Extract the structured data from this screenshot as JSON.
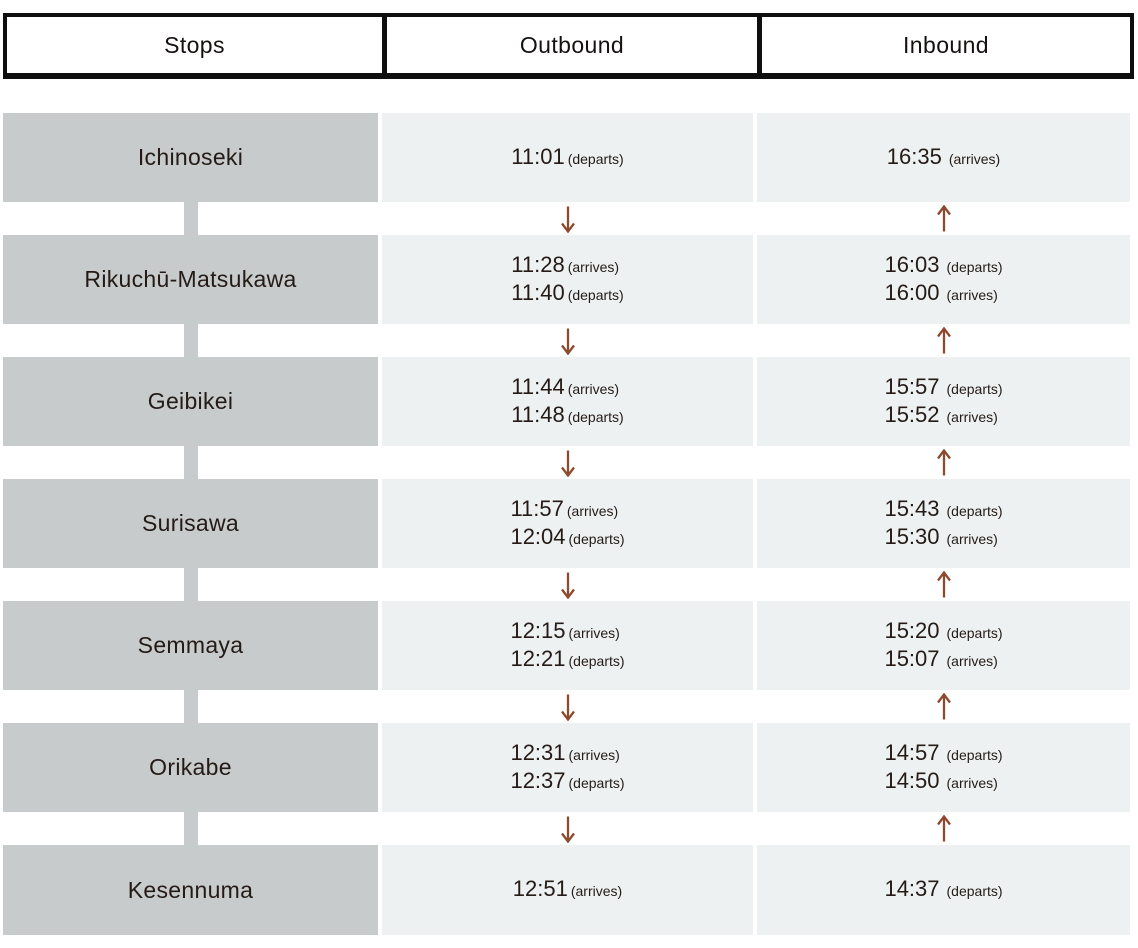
{
  "header": {
    "stops": "Stops",
    "outbound": "Outbound",
    "inbound": "Inbound"
  },
  "icons": {
    "down_arrow": "↓",
    "up_arrow": "↑"
  },
  "colors": {
    "station_cell": "#c7cbcc",
    "time_cell": "#eef1f2",
    "route_connector": "#c7cbcc",
    "arrow": "#8e4a2e",
    "header_border": "#0e0e0e",
    "text": "#241a16"
  },
  "rows": [
    {
      "station": "Ichinoseki",
      "outbound": [
        {
          "time": "11:01",
          "label": "(departs)"
        }
      ],
      "inbound": [
        {
          "time": "16:35",
          "label": "(arrives)"
        }
      ]
    },
    {
      "station": "Rikuchū-Matsukawa",
      "outbound": [
        {
          "time": "11:28",
          "label": "(arrives)"
        },
        {
          "time": "11:40",
          "label": "(departs)"
        }
      ],
      "inbound": [
        {
          "time": "16:03",
          "label": "(departs)"
        },
        {
          "time": "16:00",
          "label": "(arrives)"
        }
      ]
    },
    {
      "station": "Geibikei",
      "outbound": [
        {
          "time": "11:44",
          "label": "(arrives)"
        },
        {
          "time": "11:48",
          "label": "(departs)"
        }
      ],
      "inbound": [
        {
          "time": "15:57",
          "label": "(departs)"
        },
        {
          "time": "15:52",
          "label": "(arrives)"
        }
      ]
    },
    {
      "station": "Surisawa",
      "outbound": [
        {
          "time": "11:57",
          "label": "(arrives)"
        },
        {
          "time": "12:04",
          "label": "(departs)"
        }
      ],
      "inbound": [
        {
          "time": "15:43",
          "label": "(departs)"
        },
        {
          "time": "15:30",
          "label": "(arrives)"
        }
      ]
    },
    {
      "station": "Semmaya",
      "outbound": [
        {
          "time": "12:15",
          "label": "(arrives)"
        },
        {
          "time": "12:21",
          "label": "(departs)"
        }
      ],
      "inbound": [
        {
          "time": "15:20",
          "label": "(departs)"
        },
        {
          "time": "15:07",
          "label": "(arrives)"
        }
      ]
    },
    {
      "station": "Orikabe",
      "outbound": [
        {
          "time": "12:31",
          "label": "(arrives)"
        },
        {
          "time": "12:37",
          "label": "(departs)"
        }
      ],
      "inbound": [
        {
          "time": "14:57",
          "label": "(departs)"
        },
        {
          "time": "14:50",
          "label": "(arrives)"
        }
      ]
    },
    {
      "station": "Kesennuma",
      "outbound": [
        {
          "time": "12:51",
          "label": "(arrives)"
        }
      ],
      "inbound": [
        {
          "time": "14:37",
          "label": "(departs)"
        }
      ]
    }
  ]
}
